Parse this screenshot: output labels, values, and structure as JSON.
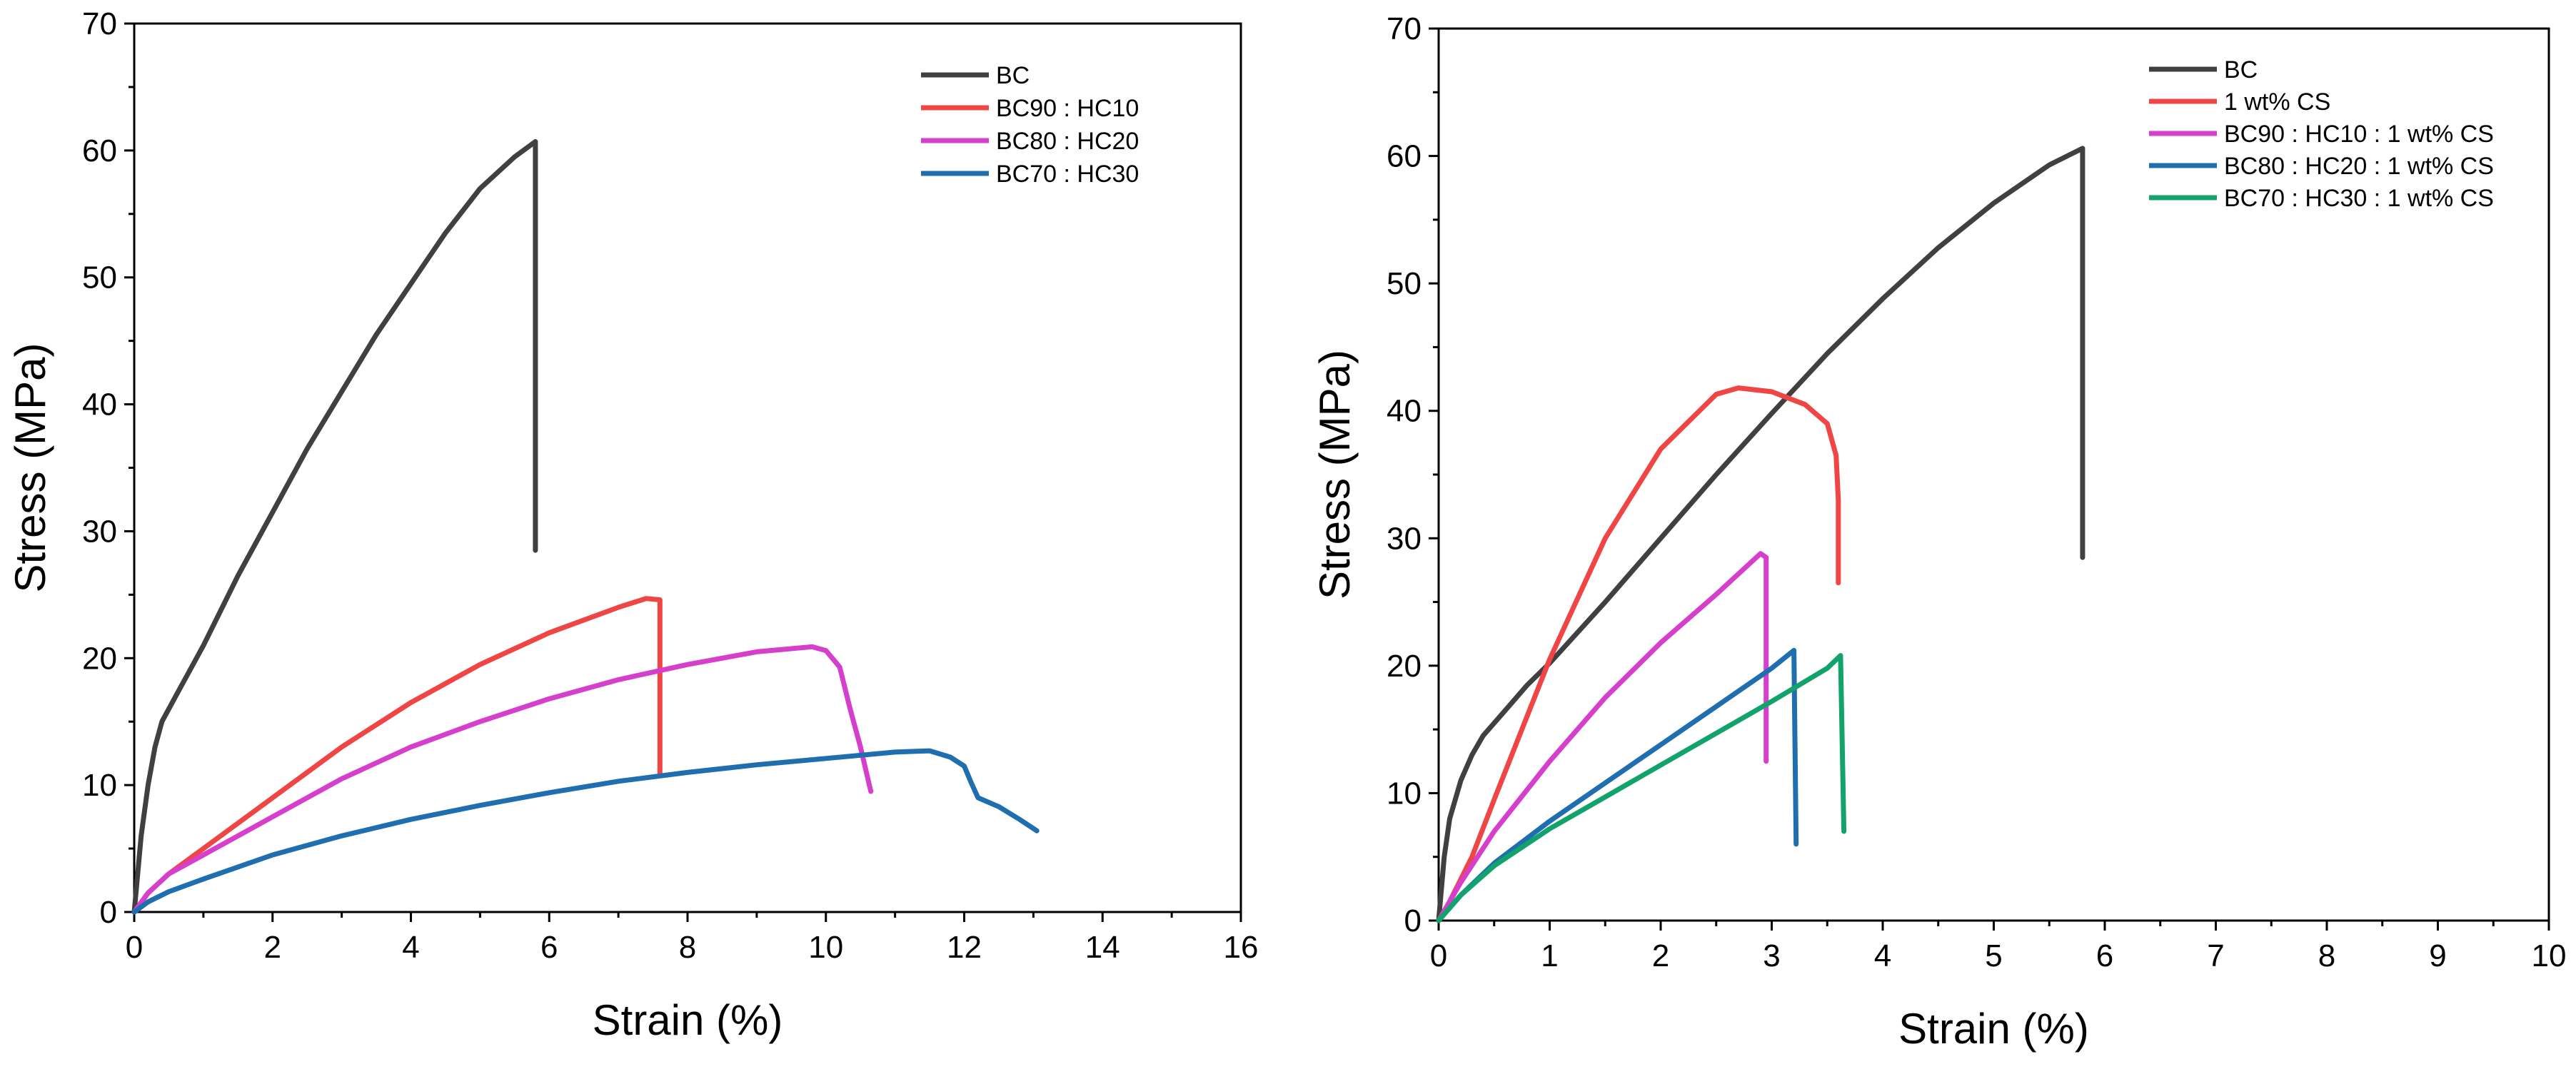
{
  "chart_data": [
    {
      "type": "line",
      "xlabel": "Strain (%)",
      "ylabel": "Stress (MPa)",
      "xlim": [
        0,
        16
      ],
      "ylim": [
        0,
        70
      ],
      "xticks": [
        0,
        2,
        4,
        6,
        8,
        10,
        12,
        14,
        16
      ],
      "yticks": [
        0,
        10,
        20,
        30,
        40,
        50,
        60,
        70
      ],
      "grid": false,
      "legend_position": "top-right",
      "series": [
        {
          "name": "BC",
          "color": "#404040",
          "x": [
            0,
            0.1,
            0.2,
            0.3,
            0.4,
            0.6,
            1.0,
            1.5,
            2.0,
            2.5,
            3.0,
            3.5,
            4.0,
            4.5,
            5.0,
            5.5,
            5.8,
            5.8
          ],
          "y": [
            0,
            6,
            10,
            13,
            15,
            17,
            21,
            26.5,
            31.5,
            36.5,
            41,
            45.5,
            49.5,
            53.5,
            57,
            59.5,
            60.7,
            28.5
          ]
        },
        {
          "name": "BC90 : HC10",
          "color": "#f04545",
          "x": [
            0,
            0.2,
            0.5,
            1.0,
            2.0,
            3.0,
            4.0,
            5.0,
            6.0,
            7.0,
            7.4,
            7.6,
            7.6
          ],
          "y": [
            0,
            1.5,
            3,
            5,
            9,
            13,
            16.5,
            19.5,
            22,
            24,
            24.7,
            24.6,
            10.8
          ]
        },
        {
          "name": "BC80 : HC20",
          "color": "#d63fcb",
          "x": [
            0,
            0.2,
            0.5,
            1.0,
            2.0,
            3.0,
            4.0,
            5.0,
            6.0,
            7.0,
            8.0,
            9.0,
            9.8,
            10.0,
            10.2,
            10.35,
            10.5,
            10.65
          ],
          "y": [
            0,
            1.5,
            3,
            4.5,
            7.5,
            10.5,
            13,
            15,
            16.8,
            18.3,
            19.5,
            20.5,
            20.9,
            20.6,
            19.3,
            16,
            13,
            9.5
          ]
        },
        {
          "name": "BC70 : HC30",
          "color": "#1f6fb0",
          "x": [
            0,
            0.2,
            0.5,
            1.0,
            2.0,
            3.0,
            4.0,
            5.0,
            6.0,
            7.0,
            8.0,
            9.0,
            10.0,
            11.0,
            11.5,
            11.8,
            12.0,
            12.1,
            12.2,
            12.5,
            12.8,
            13.05
          ],
          "y": [
            0,
            0.8,
            1.6,
            2.6,
            4.5,
            6.0,
            7.3,
            8.4,
            9.4,
            10.3,
            11.0,
            11.6,
            12.1,
            12.6,
            12.7,
            12.2,
            11.5,
            10.2,
            9.0,
            8.3,
            7.3,
            6.4
          ]
        }
      ]
    },
    {
      "type": "line",
      "xlabel": "Strain (%)",
      "ylabel": "Stress (MPa)",
      "xlim": [
        0,
        10
      ],
      "ylim": [
        0,
        70
      ],
      "xticks": [
        0,
        1,
        2,
        3,
        4,
        5,
        6,
        7,
        8,
        9,
        10
      ],
      "yticks": [
        0,
        10,
        20,
        30,
        40,
        50,
        60,
        70
      ],
      "grid": false,
      "legend_position": "top-right",
      "series": [
        {
          "name": "BC",
          "color": "#404040",
          "x": [
            0,
            0.05,
            0.1,
            0.2,
            0.3,
            0.4,
            0.6,
            0.8,
            1.0,
            1.5,
            2.0,
            2.5,
            3.0,
            3.5,
            4.0,
            4.5,
            5.0,
            5.5,
            5.8,
            5.8
          ],
          "y": [
            0,
            5,
            8,
            11,
            13,
            14.5,
            16.5,
            18.5,
            20.2,
            25,
            30,
            35,
            39.8,
            44.5,
            48.8,
            52.8,
            56.3,
            59.3,
            60.6,
            28.5
          ]
        },
        {
          "name": "1 wt% CS",
          "color": "#f04545",
          "x": [
            0,
            0.1,
            0.3,
            0.5,
            0.75,
            1.0,
            1.5,
            2.0,
            2.5,
            2.7,
            3.0,
            3.3,
            3.5,
            3.58,
            3.6,
            3.6
          ],
          "y": [
            0,
            1.5,
            5,
            9.5,
            15,
            20.5,
            30,
            37,
            41.3,
            41.8,
            41.5,
            40.5,
            39,
            36.5,
            33,
            26.5
          ]
        },
        {
          "name": "BC90 : HC10 : 1 wt% CS",
          "color": "#d63fcb",
          "x": [
            0,
            0.2,
            0.5,
            1.0,
            1.5,
            2.0,
            2.5,
            2.9,
            2.95,
            2.95
          ],
          "y": [
            0,
            3,
            7,
            12.5,
            17.5,
            21.8,
            25.6,
            28.8,
            28.5,
            12.5
          ]
        },
        {
          "name": "BC80 : HC20 : 1 wt% CS",
          "color": "#1f6fb0",
          "x": [
            0,
            0.2,
            0.5,
            1.0,
            1.5,
            2.0,
            2.5,
            3.0,
            3.2,
            3.22
          ],
          "y": [
            0,
            2,
            4.5,
            7.8,
            10.8,
            13.8,
            16.8,
            19.8,
            21.2,
            6.0
          ]
        },
        {
          "name": "BC70 : HC30 : 1 wt% CS",
          "color": "#12a26c",
          "x": [
            0,
            0.2,
            0.5,
            1.0,
            1.5,
            2.0,
            2.5,
            3.0,
            3.5,
            3.62,
            3.65
          ],
          "y": [
            0,
            2,
            4.3,
            7.2,
            9.7,
            12.2,
            14.7,
            17.2,
            19.8,
            20.8,
            7.0
          ]
        }
      ]
    }
  ]
}
